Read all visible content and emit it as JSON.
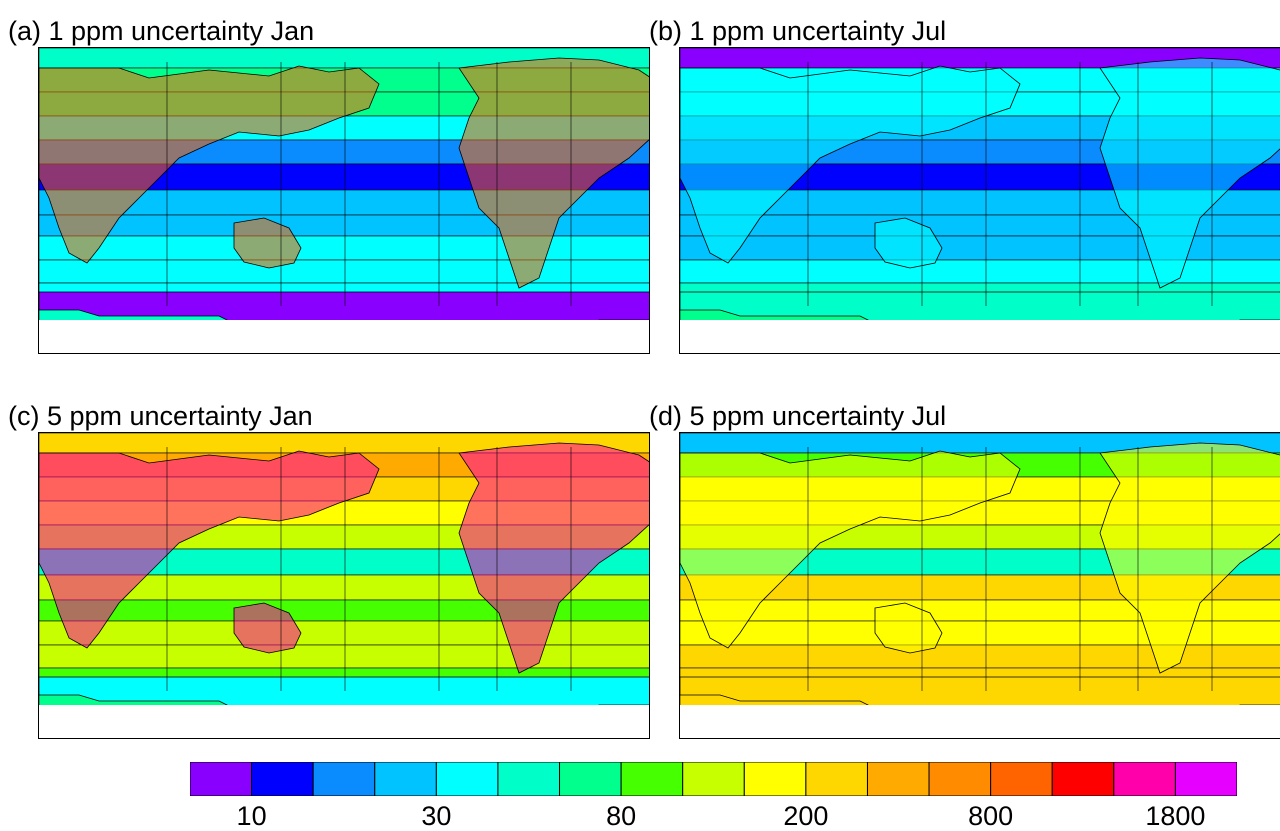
{
  "panels": [
    {
      "id": "a",
      "title": "(a) 1 ppm uncertainty Jan",
      "band_classes": [
        5,
        6,
        6,
        4,
        2,
        1,
        3,
        3,
        4,
        4,
        4,
        5,
        1
      ],
      "north_region_class": 13,
      "antarctic_class": 0
    },
    {
      "id": "b",
      "title": "(b) 1 ppm uncertainty Jul",
      "band_classes": [
        0,
        4,
        4,
        3,
        2,
        1,
        3,
        3,
        3,
        4,
        5,
        6,
        5
      ],
      "north_region_class": 4,
      "antarctic_class": 5
    },
    {
      "id": "c",
      "title": "(c) 5 ppm uncertainty Jan",
      "band_classes": [
        10,
        11,
        10,
        9,
        8,
        5,
        8,
        7,
        8,
        8,
        7,
        6,
        5
      ],
      "north_region_class": 15,
      "antarctic_class": 4
    },
    {
      "id": "d",
      "title": "(d) 5 ppm uncertainty Jul",
      "band_classes": [
        3,
        7,
        9,
        9,
        8,
        5,
        10,
        9,
        9,
        10,
        10,
        10,
        10
      ],
      "north_region_class": 9,
      "antarctic_class": 10
    }
  ],
  "colorbar": {
    "colors": [
      "#8a00ff",
      "#0000ff",
      "#0a8cff",
      "#00c3ff",
      "#00ffff",
      "#00ffc8",
      "#00ff8c",
      "#46ff00",
      "#c8ff00",
      "#ffff00",
      "#ffd700",
      "#ffaa00",
      "#ff8c00",
      "#ff6400",
      "#ff0000",
      "#ff00aa",
      "#e600ff"
    ],
    "tick_labels": [
      "10",
      "30",
      "80",
      "200",
      "800",
      "1800"
    ],
    "tick_after_box": [
      1,
      4,
      7,
      10,
      13,
      16
    ]
  }
}
